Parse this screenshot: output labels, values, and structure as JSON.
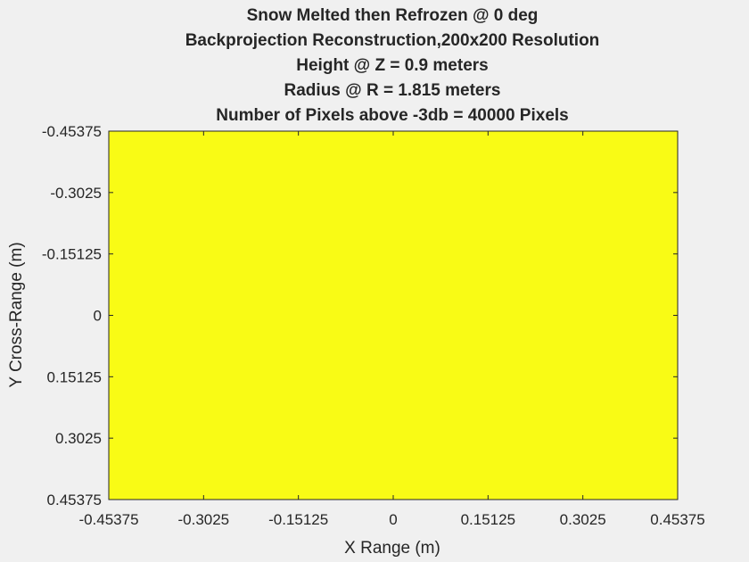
{
  "chart_data": {
    "type": "heatmap",
    "title_lines": [
      "Snow Melted then Refrozen @ 0 deg",
      "Backprojection Reconstruction,200x200 Resolution",
      "Height @ Z = 0.9 meters",
      "Radius @ R = 1.815 meters",
      "Number of Pixels above -3db = 40000 Pixels"
    ],
    "xlabel": "X Range (m)",
    "ylabel": "Y Cross-Range (m)",
    "xlim": [
      -0.45375,
      0.45375
    ],
    "ylim": [
      -0.45375,
      0.45375
    ],
    "y_reversed": true,
    "x_ticks": [
      -0.45375,
      -0.3025,
      -0.15125,
      0,
      0.15125,
      0.3025,
      0.45375
    ],
    "x_tick_labels": [
      "-0.45375",
      "-0.3025",
      "-0.15125",
      "0",
      "0.15125",
      "0.3025",
      "0.45375"
    ],
    "y_ticks": [
      -0.45375,
      -0.3025,
      -0.15125,
      0,
      0.15125,
      0.3025,
      0.45375
    ],
    "y_tick_labels": [
      "-0.45375",
      "-0.3025",
      "-0.15125",
      "0",
      "0.15125",
      "0.3025",
      "0.45375"
    ],
    "grid": false,
    "resolution": [
      200,
      200
    ],
    "fill_value": "max",
    "fill_color": "#f9fb15",
    "axis_color": "#262626"
  }
}
